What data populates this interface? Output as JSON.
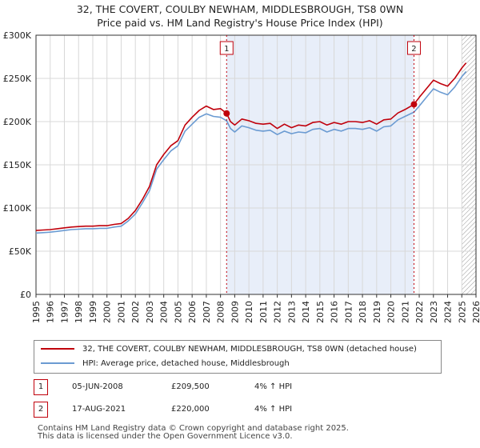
{
  "title": {
    "line1": "32, THE COVERT, COULBY NEWHAM, MIDDLESBROUGH, TS8 0WN",
    "line2": "Price paid vs. HM Land Registry's House Price Index (HPI)"
  },
  "colors": {
    "property": "#c0000b",
    "hpi": "#6b9bd2",
    "shade": "#e8eef9",
    "grid": "#d8d8d8"
  },
  "legend": {
    "property_label": "32, THE COVERT, COULBY NEWHAM, MIDDLESBROUGH, TS8 0WN (detached house)",
    "hpi_label": "HPI: Average price, detached house, Middlesbrough"
  },
  "transactions": [
    {
      "id": "1",
      "date": "05-JUN-2008",
      "price": "£209,500",
      "hpi_change": "4% ↑ HPI"
    },
    {
      "id": "2",
      "date": "17-AUG-2021",
      "price": "£220,000",
      "hpi_change": "4% ↑ HPI"
    }
  ],
  "footer": {
    "line1": "Contains HM Land Registry data © Crown copyright and database right 2025.",
    "line2": "This data is licensed under the Open Government Licence v3.0."
  },
  "chart_data": {
    "type": "line",
    "title": "Price paid vs. HM Land Registry's House Price Index (HPI)",
    "xlim": [
      1995,
      2026
    ],
    "ylim": [
      0,
      300000
    ],
    "y_ticks": [
      0,
      50000,
      100000,
      150000,
      200000,
      250000,
      300000
    ],
    "y_tick_labels": [
      "£0",
      "£50K",
      "£100K",
      "£150K",
      "£200K",
      "£250K",
      "£300K"
    ],
    "x_ticks": [
      1995,
      1996,
      1997,
      1998,
      1999,
      2000,
      2001,
      2002,
      2003,
      2004,
      2005,
      2006,
      2007,
      2008,
      2009,
      2010,
      2011,
      2012,
      2013,
      2014,
      2015,
      2016,
      2017,
      2018,
      2019,
      2020,
      2021,
      2022,
      2023,
      2024,
      2025,
      2026
    ],
    "x_tick_labels": [
      "1995",
      "1996",
      "1997",
      "1998",
      "1999",
      "2000",
      "2001",
      "2002",
      "2003",
      "2004",
      "2005",
      "2006",
      "2007",
      "2008",
      "2009",
      "2010",
      "2011",
      "2012",
      "2013",
      "2014",
      "2015",
      "2016",
      "2017",
      "2018",
      "2019",
      "2020",
      "2021",
      "2022",
      "2023",
      "2024",
      "2025",
      "2026"
    ],
    "shaded_period": [
      2008.43,
      2021.63
    ],
    "future_hatch_from": 2025.0,
    "series": [
      {
        "name": "32, THE COVERT, COULBY NEWHAM, MIDDLESBROUGH, TS8 0WN (detached house)",
        "x": [
          1995,
          1995.5,
          1996,
          1996.5,
          1997,
          1997.5,
          1998,
          1998.5,
          1999,
          1999.5,
          2000,
          2000.5,
          2001,
          2001.5,
          2002,
          2002.5,
          2003,
          2003.5,
          2004,
          2004.5,
          2005,
          2005.5,
          2006,
          2006.5,
          2007,
          2007.5,
          2008,
          2008.43,
          2008.7,
          2009,
          2009.5,
          2010,
          2010.5,
          2011,
          2011.5,
          2012,
          2012.5,
          2013,
          2013.5,
          2014,
          2014.5,
          2015,
          2015.5,
          2016,
          2016.5,
          2017,
          2017.5,
          2018,
          2018.5,
          2019,
          2019.5,
          2020,
          2020.5,
          2021,
          2021.63,
          2022,
          2022.5,
          2023,
          2023.5,
          2024,
          2024.5,
          2025,
          2025.3
        ],
        "values": [
          74000,
          74500,
          75000,
          76000,
          77000,
          78000,
          78500,
          79000,
          79000,
          79500,
          79500,
          81000,
          82000,
          88000,
          97000,
          110000,
          125000,
          150000,
          162000,
          172000,
          178000,
          196000,
          205000,
          213000,
          218000,
          214000,
          215000,
          209500,
          200000,
          196000,
          203000,
          201000,
          198000,
          197000,
          198000,
          192000,
          197000,
          193000,
          196000,
          195000,
          199000,
          200000,
          196000,
          199000,
          197000,
          200000,
          200000,
          199000,
          201000,
          197000,
          202000,
          203000,
          210000,
          214000,
          220000,
          228000,
          238000,
          248000,
          244000,
          241000,
          250000,
          262000,
          268000
        ]
      },
      {
        "name": "HPI: Average price, detached house, Middlesbrough",
        "x": [
          1995,
          1995.5,
          1996,
          1996.5,
          1997,
          1997.5,
          1998,
          1998.5,
          1999,
          1999.5,
          2000,
          2000.5,
          2001,
          2001.5,
          2002,
          2002.5,
          2003,
          2003.5,
          2004,
          2004.5,
          2005,
          2005.5,
          2006,
          2006.5,
          2007,
          2007.5,
          2008,
          2008.43,
          2008.7,
          2009,
          2009.5,
          2010,
          2010.5,
          2011,
          2011.5,
          2012,
          2012.5,
          2013,
          2013.5,
          2014,
          2014.5,
          2015,
          2015.5,
          2016,
          2016.5,
          2017,
          2017.5,
          2018,
          2018.5,
          2019,
          2019.5,
          2020,
          2020.5,
          2021,
          2021.63,
          2022,
          2022.5,
          2023,
          2023.5,
          2024,
          2024.5,
          2025,
          2025.3
        ],
        "values": [
          71000,
          71500,
          72000,
          73000,
          74000,
          75000,
          75500,
          76000,
          76000,
          76500,
          76500,
          78000,
          79000,
          85000,
          93000,
          106000,
          120000,
          145000,
          156000,
          166000,
          172000,
          189000,
          197000,
          205000,
          209000,
          206000,
          205000,
          201000,
          192000,
          188000,
          195000,
          193000,
          190000,
          189000,
          190000,
          185000,
          189000,
          186000,
          188000,
          187000,
          191000,
          192000,
          188000,
          191000,
          189000,
          192000,
          192000,
          191000,
          193000,
          189000,
          194000,
          195000,
          202000,
          206000,
          211000,
          218000,
          228000,
          238000,
          234000,
          231000,
          240000,
          252000,
          258000
        ]
      }
    ],
    "markers": [
      {
        "label": "1",
        "x": 2008.43,
        "y": 209500
      },
      {
        "label": "2",
        "x": 2021.63,
        "y": 220000
      }
    ]
  }
}
